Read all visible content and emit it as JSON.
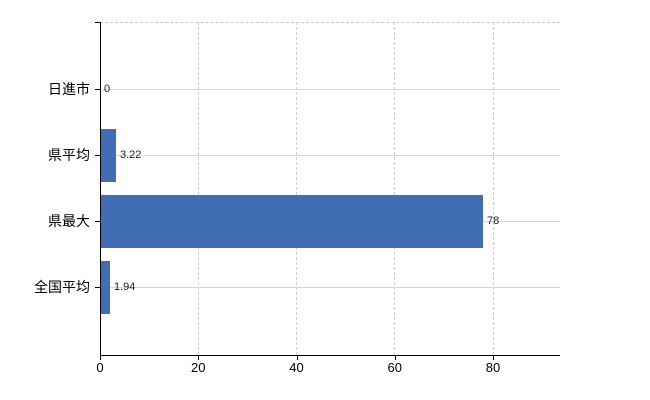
{
  "chart_data": {
    "type": "bar",
    "orientation": "horizontal",
    "categories": [
      "日進市",
      "県平均",
      "県最大",
      "全国平均"
    ],
    "values": [
      0,
      3.22,
      78,
      1.94
    ],
    "value_labels": [
      "0",
      "3.22",
      "78",
      "1.94"
    ],
    "x_ticks": [
      0,
      20,
      40,
      60,
      80
    ],
    "x_tick_labels": [
      "0",
      "20",
      "40",
      "60",
      "80"
    ],
    "xlim": [
      0,
      93.6
    ],
    "grid": true,
    "legend": false,
    "bar_color": "#416db4",
    "h_gridline_color": "#d3d9d3",
    "v_gridline_color": "#cfcfd4",
    "axis_color": "#000000",
    "background_color": "#ffffff",
    "value_label_color": "#222222",
    "category_label_color": "#000000"
  }
}
